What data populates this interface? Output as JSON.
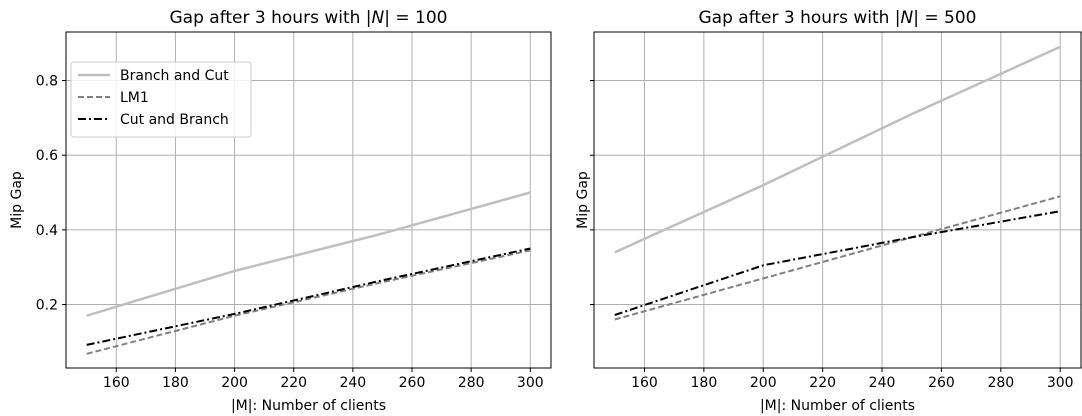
{
  "chart_data": [
    {
      "type": "line",
      "title": "Gap after 3 hours with |N| = 100",
      "title_parts": {
        "prefix": "Gap after 3 hours with |",
        "var": "N",
        "suffix": "| = 100"
      },
      "xlabel": "|M|: Number of clients",
      "ylabel": "Mip Gap",
      "xlim": [
        143,
        307
      ],
      "ylim": [
        0.03,
        0.93
      ],
      "xticks": [
        160,
        180,
        200,
        220,
        240,
        260,
        280,
        300
      ],
      "xtick_labels": [
        "160",
        "180",
        "200",
        "220",
        "240",
        "260",
        "280",
        "300"
      ],
      "yticks": [
        0.2,
        0.4,
        0.6,
        0.8
      ],
      "ytick_labels": [
        "0.2",
        "0.4",
        "0.6",
        "0.8"
      ],
      "show_ytick_labels": true,
      "grid": true,
      "legend": "upper-left",
      "x": [
        150,
        200,
        250,
        300
      ],
      "series": [
        {
          "name": "Branch and Cut",
          "values": [
            0.17,
            0.29,
            0.39,
            0.5
          ],
          "color": "#bfbfbf",
          "style": "solid"
        },
        {
          "name": "LM1",
          "values": [
            0.068,
            0.17,
            0.26,
            0.345
          ],
          "color": "#808080",
          "style": "dashed"
        },
        {
          "name": "Cut and Branch",
          "values": [
            0.092,
            0.175,
            0.265,
            0.35
          ],
          "color": "#000000",
          "style": "dashdot"
        }
      ]
    },
    {
      "type": "line",
      "title": "Gap after 3 hours with |N| = 500",
      "title_parts": {
        "prefix": "Gap after 3 hours with |",
        "var": "N",
        "suffix": "| = 500"
      },
      "xlabel": "|M|: Number of clients",
      "ylabel": "Mip Gap",
      "xlim": [
        143,
        307
      ],
      "ylim": [
        0.03,
        0.93
      ],
      "xticks": [
        160,
        180,
        200,
        220,
        240,
        260,
        280,
        300
      ],
      "xtick_labels": [
        "160",
        "180",
        "200",
        "220",
        "240",
        "260",
        "280",
        "300"
      ],
      "yticks": [
        0.2,
        0.4,
        0.6,
        0.8
      ],
      "ytick_labels": [
        "0.2",
        "0.4",
        "0.6",
        "0.8"
      ],
      "show_ytick_labels": false,
      "grid": true,
      "legend": "",
      "x": [
        150,
        200,
        250,
        300
      ],
      "series": [
        {
          "name": "Branch and Cut",
          "values": [
            0.34,
            0.52,
            0.71,
            0.89
          ],
          "color": "#bfbfbf",
          "style": "solid"
        },
        {
          "name": "LM1",
          "values": [
            0.16,
            0.27,
            0.38,
            0.49
          ],
          "color": "#808080",
          "style": "dashed"
        },
        {
          "name": "Cut and Branch",
          "values": [
            0.172,
            0.305,
            0.38,
            0.45
          ],
          "color": "#000000",
          "style": "dashdot"
        }
      ]
    }
  ]
}
